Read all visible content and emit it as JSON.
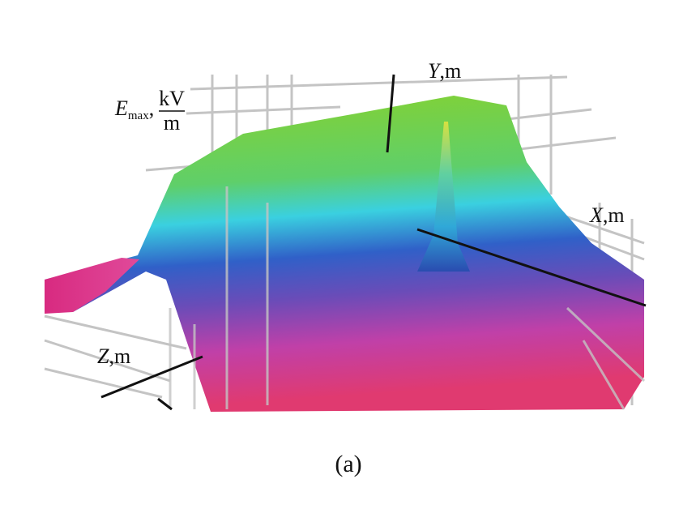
{
  "axes": {
    "e_label": {
      "symbol": "E",
      "subscript": "max",
      "separator": ",",
      "unit_numerator": "kV",
      "unit_denominator": "m"
    },
    "y_label": {
      "symbol": "Y",
      "unit": ",m"
    },
    "x_label": {
      "symbol": "X",
      "unit": ",m"
    },
    "z_label": {
      "symbol": "Z",
      "unit": ",m"
    }
  },
  "caption": "(a)"
}
